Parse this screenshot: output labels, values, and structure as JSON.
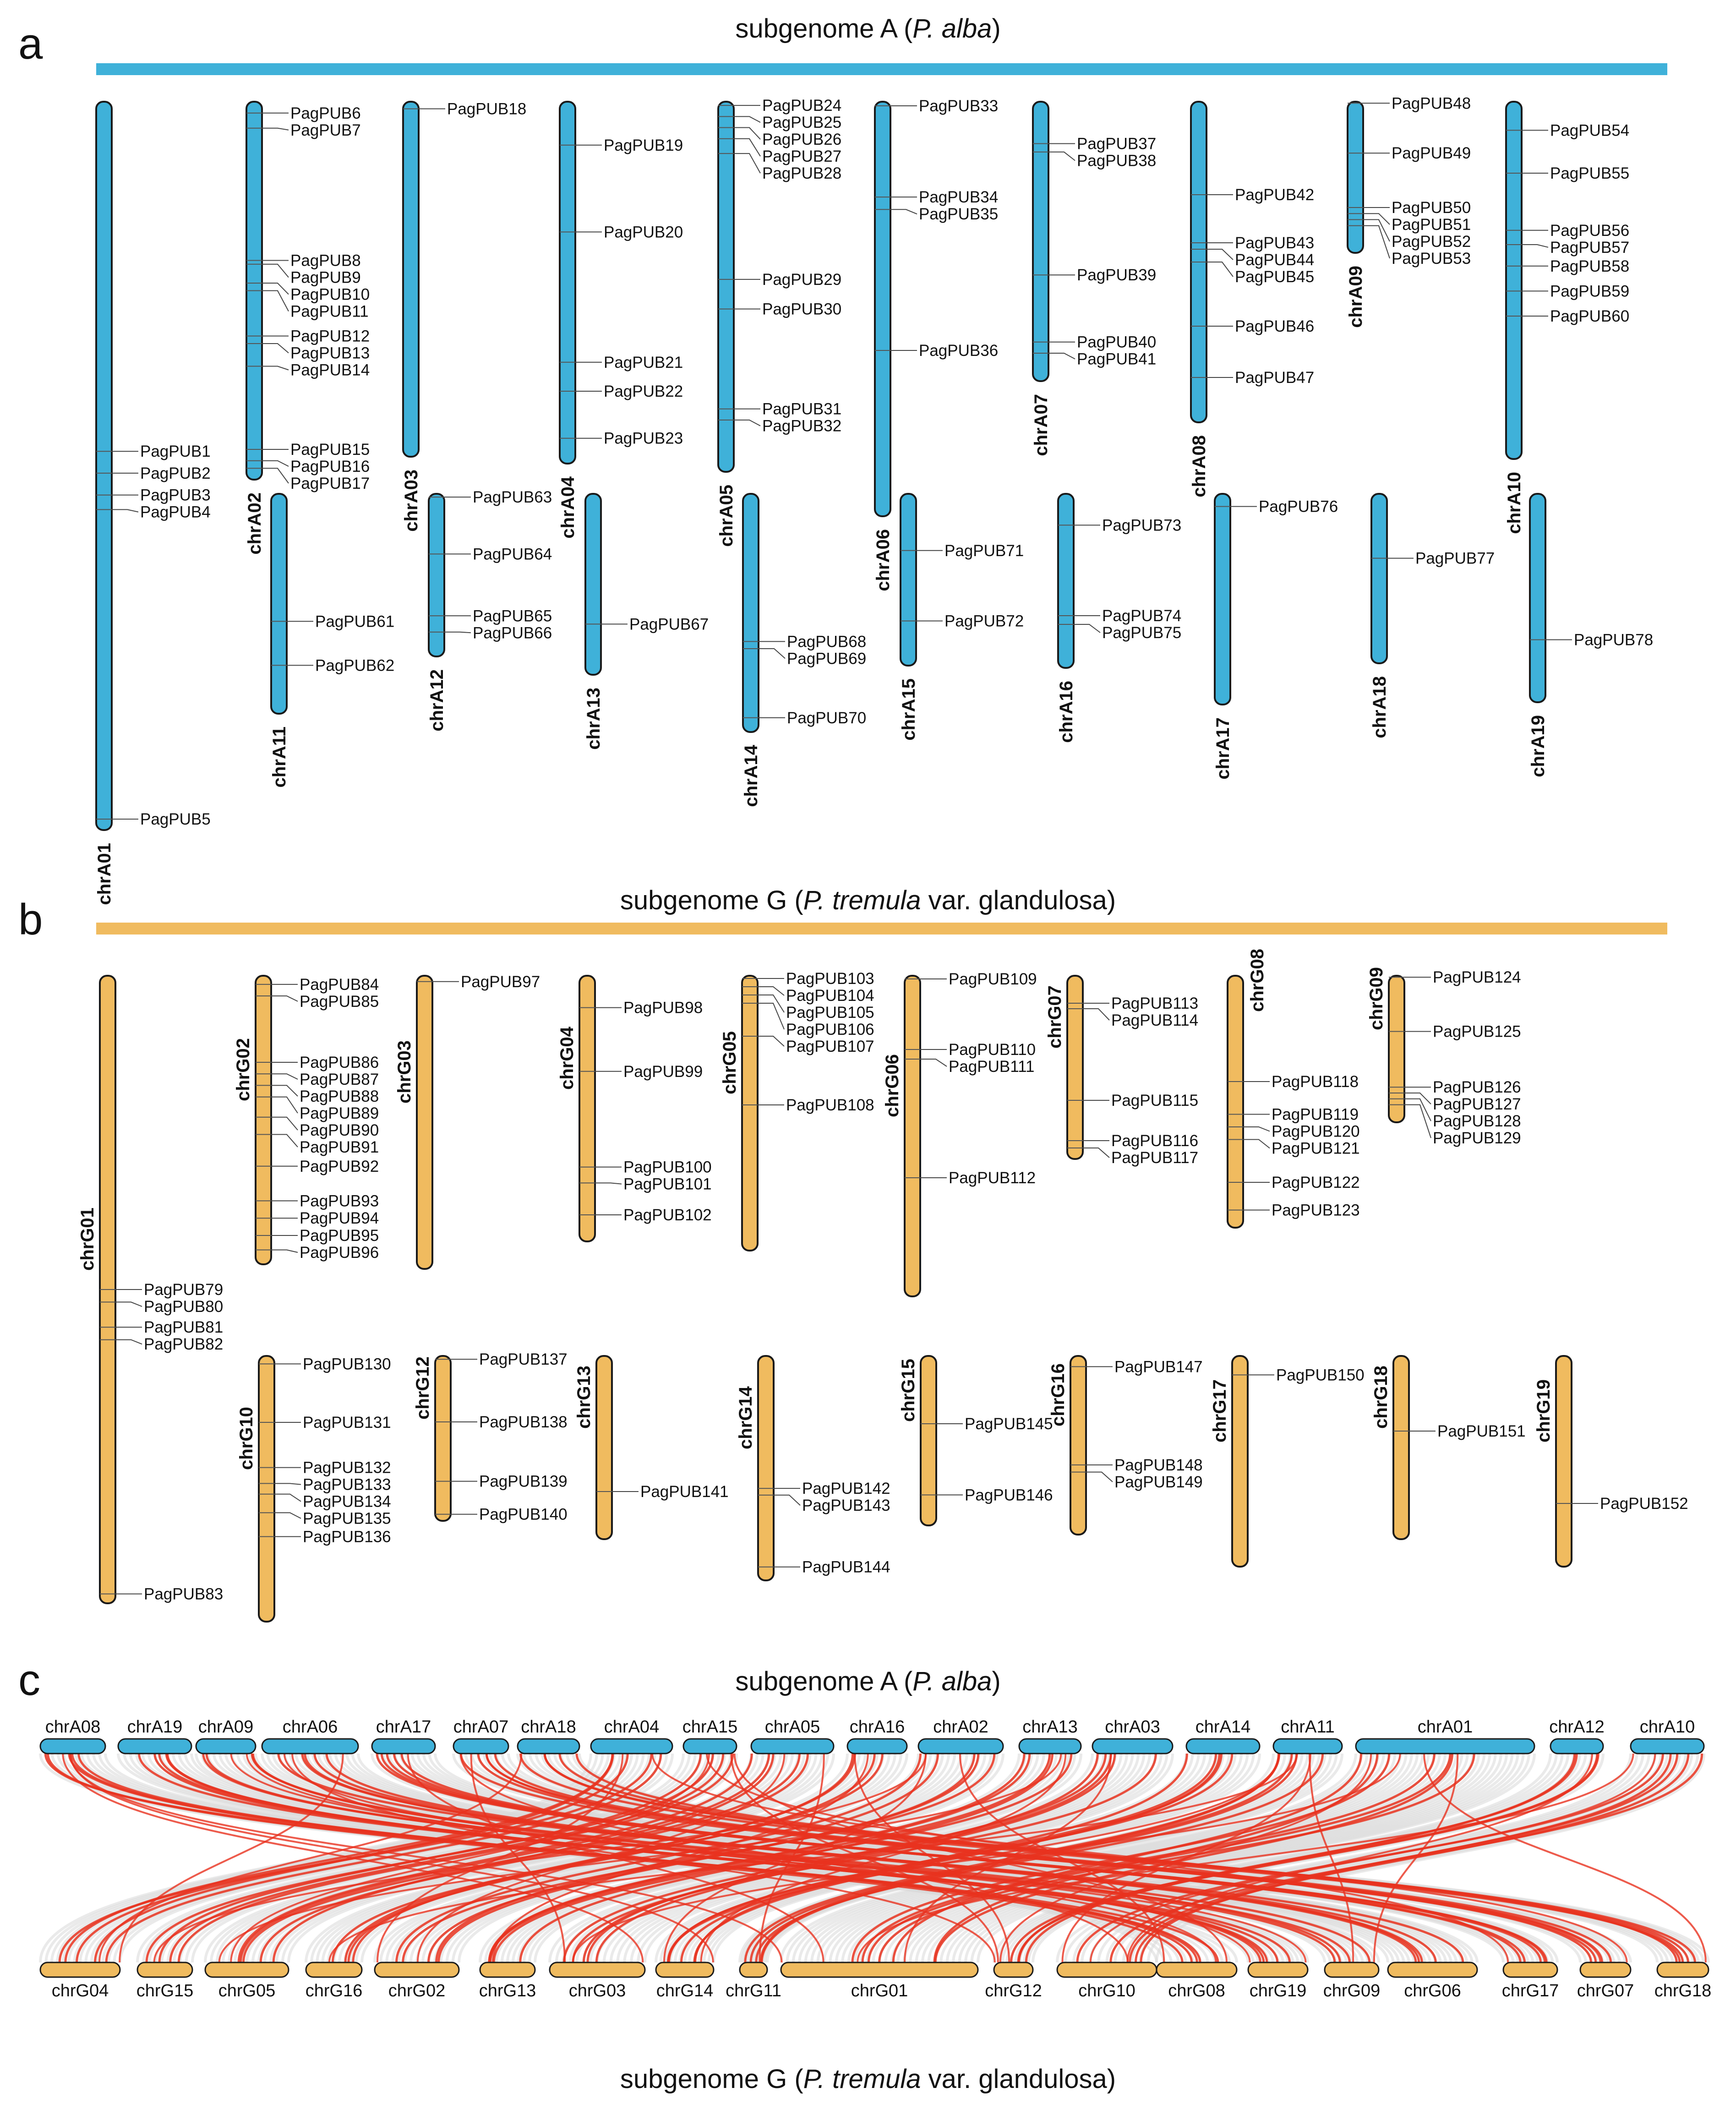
{
  "panel_a": {
    "label": "a",
    "title_pre": "subgenome A (",
    "title_em": "P. alba",
    "title_post": ")",
    "bar_color": "#3fb1d9",
    "chromosomes": [
      {
        "name": "chrA01",
        "genes": [
          [
            "PagPUB1",
            0.48
          ],
          [
            "PagPUB2",
            0.51
          ],
          [
            "PagPUB3",
            0.54
          ],
          [
            "PagPUB4",
            0.56
          ],
          [
            "PagPUB5",
            0.985
          ]
        ]
      },
      {
        "name": "chrA02",
        "genes": [
          [
            "PagPUB6",
            0.03
          ],
          [
            "PagPUB7",
            0.07
          ],
          [
            "PagPUB8",
            0.42
          ],
          [
            "PagPUB9",
            0.43
          ],
          [
            "PagPUB10",
            0.48
          ],
          [
            "PagPUB11",
            0.5
          ],
          [
            "PagPUB12",
            0.62
          ],
          [
            "PagPUB13",
            0.64
          ],
          [
            "PagPUB14",
            0.7
          ],
          [
            "PagPUB15",
            0.92
          ],
          [
            "PagPUB16",
            0.95
          ],
          [
            "PagPUB17",
            0.97
          ]
        ]
      },
      {
        "name": "chrA03",
        "genes": [
          [
            "PagPUB18",
            0.02
          ]
        ]
      },
      {
        "name": "chrA04",
        "genes": [
          [
            "PagPUB19",
            0.12
          ],
          [
            "PagPUB20",
            0.36
          ],
          [
            "PagPUB21",
            0.72
          ],
          [
            "PagPUB22",
            0.8
          ],
          [
            "PagPUB23",
            0.93
          ]
        ]
      },
      {
        "name": "chrA05",
        "genes": [
          [
            "PagPUB24",
            0.01
          ],
          [
            "PagPUB25",
            0.04
          ],
          [
            "PagPUB26",
            0.07
          ],
          [
            "PagPUB27",
            0.1
          ],
          [
            "PagPUB28",
            0.14
          ],
          [
            "PagPUB29",
            0.48
          ],
          [
            "PagPUB30",
            0.56
          ],
          [
            "PagPUB31",
            0.83
          ],
          [
            "PagPUB32",
            0.86
          ]
        ]
      },
      {
        "name": "chrA06",
        "genes": [
          [
            "PagPUB33",
            0.01
          ],
          [
            "PagPUB34",
            0.23
          ],
          [
            "PagPUB35",
            0.26
          ],
          [
            "PagPUB36",
            0.6
          ]
        ]
      },
      {
        "name": "chrA07",
        "genes": [
          [
            "PagPUB37",
            0.15
          ],
          [
            "PagPUB38",
            0.18
          ],
          [
            "PagPUB39",
            0.62
          ],
          [
            "PagPUB40",
            0.86
          ],
          [
            "PagPUB41",
            0.9
          ]
        ]
      },
      {
        "name": "chrA08",
        "genes": [
          [
            "PagPUB42",
            0.29
          ],
          [
            "PagPUB43",
            0.44
          ],
          [
            "PagPUB44",
            0.46
          ],
          [
            "PagPUB45",
            0.5
          ],
          [
            "PagPUB46",
            0.7
          ],
          [
            "PagPUB47",
            0.86
          ]
        ]
      },
      {
        "name": "chrA09",
        "genes": [
          [
            "PagPUB48",
            0.01
          ],
          [
            "PagPUB49",
            0.34
          ],
          [
            "PagPUB50",
            0.7
          ],
          [
            "PagPUB51",
            0.74
          ],
          [
            "PagPUB52",
            0.78
          ],
          [
            "PagPUB53",
            0.82
          ]
        ]
      },
      {
        "name": "chrA10",
        "genes": [
          [
            "PagPUB54",
            0.08
          ],
          [
            "PagPUB55",
            0.2
          ],
          [
            "PagPUB56",
            0.36
          ],
          [
            "PagPUB57",
            0.4
          ],
          [
            "PagPUB58",
            0.46
          ],
          [
            "PagPUB59",
            0.53
          ],
          [
            "PagPUB60",
            0.6
          ]
        ]
      },
      {
        "name": "chrA11",
        "genes": [
          [
            "PagPUB61",
            0.58
          ],
          [
            "PagPUB62",
            0.78
          ]
        ]
      },
      {
        "name": "chrA12",
        "genes": [
          [
            "PagPUB63",
            0.02
          ],
          [
            "PagPUB64",
            0.37
          ],
          [
            "PagPUB65",
            0.75
          ],
          [
            "PagPUB66",
            0.85
          ]
        ]
      },
      {
        "name": "chrA13",
        "genes": [
          [
            "PagPUB67",
            0.72
          ]
        ]
      },
      {
        "name": "chrA14",
        "genes": [
          [
            "PagPUB68",
            0.62
          ],
          [
            "PagPUB69",
            0.65
          ],
          [
            "PagPUB70",
            0.94
          ]
        ]
      },
      {
        "name": "chrA15",
        "genes": [
          [
            "PagPUB71",
            0.33
          ],
          [
            "PagPUB72",
            0.74
          ]
        ]
      },
      {
        "name": "chrA16",
        "genes": [
          [
            "PagPUB73",
            0.18
          ],
          [
            "PagPUB74",
            0.7
          ],
          [
            "PagPUB75",
            0.75
          ]
        ]
      },
      {
        "name": "chrA17",
        "genes": [
          [
            "PagPUB76",
            0.06
          ]
        ]
      },
      {
        "name": "chrA18",
        "genes": [
          [
            "PagPUB77",
            0.38
          ]
        ]
      },
      {
        "name": "chrA19",
        "genes": [
          [
            "PagPUB78",
            0.7
          ]
        ]
      }
    ]
  },
  "panel_b": {
    "label": "b",
    "title_pre": "subgenome G (",
    "title_em": "P. tremula",
    "title_post": " var. glandulosa)",
    "bar_color": "#f0bb5f",
    "chromosomes": [
      {
        "name": "chrG01",
        "genes": [
          [
            "PagPUB79",
            0.5
          ],
          [
            "PagPUB80",
            0.52
          ],
          [
            "PagPUB81",
            0.56
          ],
          [
            "PagPUB82",
            0.58
          ],
          [
            "PagPUB83",
            0.985
          ]
        ]
      },
      {
        "name": "chrG02",
        "genes": [
          [
            "PagPUB84",
            0.03
          ],
          [
            "PagPUB85",
            0.07
          ],
          [
            "PagPUB86",
            0.3
          ],
          [
            "PagPUB87",
            0.34
          ],
          [
            "PagPUB88",
            0.38
          ],
          [
            "PagPUB89",
            0.42
          ],
          [
            "PagPUB90",
            0.49
          ],
          [
            "PagPUB91",
            0.55
          ],
          [
            "PagPUB92",
            0.66
          ],
          [
            "PagPUB93",
            0.78
          ],
          [
            "PagPUB94",
            0.84
          ],
          [
            "PagPUB95",
            0.9
          ],
          [
            "PagPUB96",
            0.95
          ]
        ]
      },
      {
        "name": "chrG03",
        "genes": [
          [
            "PagPUB97",
            0.02
          ]
        ]
      },
      {
        "name": "chrG04",
        "genes": [
          [
            "PagPUB98",
            0.12
          ],
          [
            "PagPUB99",
            0.36
          ],
          [
            "PagPUB100",
            0.72
          ],
          [
            "PagPUB101",
            0.78
          ],
          [
            "PagPUB102",
            0.9
          ]
        ]
      },
      {
        "name": "chrG05",
        "genes": [
          [
            "PagPUB103",
            0.01
          ],
          [
            "PagPUB104",
            0.04
          ],
          [
            "PagPUB105",
            0.07
          ],
          [
            "PagPUB106",
            0.1
          ],
          [
            "PagPUB107",
            0.22
          ],
          [
            "PagPUB108",
            0.47
          ]
        ]
      },
      {
        "name": "chrG06",
        "genes": [
          [
            "PagPUB109",
            0.01
          ],
          [
            "PagPUB110",
            0.23
          ],
          [
            "PagPUB111",
            0.26
          ],
          [
            "PagPUB112",
            0.63
          ]
        ]
      },
      {
        "name": "chrG07",
        "genes": [
          [
            "PagPUB113",
            0.15
          ],
          [
            "PagPUB114",
            0.18
          ],
          [
            "PagPUB115",
            0.68
          ],
          [
            "PagPUB116",
            0.9
          ],
          [
            "PagPUB117",
            0.94
          ]
        ]
      },
      {
        "name": "chrG08",
        "genes": [
          [
            "PagPUB118",
            0.42
          ],
          [
            "PagPUB119",
            0.55
          ],
          [
            "PagPUB120",
            0.6
          ],
          [
            "PagPUB121",
            0.65
          ],
          [
            "PagPUB122",
            0.82
          ],
          [
            "PagPUB123",
            0.93
          ]
        ]
      },
      {
        "name": "chrG09",
        "genes": [
          [
            "PagPUB124",
            0.01
          ],
          [
            "PagPUB125",
            0.38
          ],
          [
            "PagPUB126",
            0.76
          ],
          [
            "PagPUB127",
            0.8
          ],
          [
            "PagPUB128",
            0.84
          ],
          [
            "PagPUB129",
            0.88
          ]
        ]
      },
      {
        "name": "chrG10",
        "genes": [
          [
            "PagPUB130",
            0.03
          ],
          [
            "PagPUB131",
            0.25
          ],
          [
            "PagPUB132",
            0.42
          ],
          [
            "PagPUB133",
            0.48
          ],
          [
            "PagPUB134",
            0.52
          ],
          [
            "PagPUB135",
            0.59
          ],
          [
            "PagPUB136",
            0.68
          ]
        ]
      },
      {
        "name": "chrG12",
        "genes": [
          [
            "PagPUB137",
            0.02
          ],
          [
            "PagPUB138",
            0.4
          ],
          [
            "PagPUB139",
            0.76
          ],
          [
            "PagPUB140",
            0.96
          ]
        ]
      },
      {
        "name": "chrG13",
        "genes": [
          [
            "PagPUB141",
            0.74
          ]
        ]
      },
      {
        "name": "chrG14",
        "genes": [
          [
            "PagPUB142",
            0.59
          ],
          [
            "PagPUB143",
            0.62
          ],
          [
            "PagPUB144",
            0.94
          ]
        ]
      },
      {
        "name": "chrG15",
        "genes": [
          [
            "PagPUB145",
            0.4
          ],
          [
            "PagPUB146",
            0.82
          ]
        ]
      },
      {
        "name": "chrG16",
        "genes": [
          [
            "PagPUB147",
            0.06
          ],
          [
            "PagPUB148",
            0.61
          ],
          [
            "PagPUB149",
            0.65
          ]
        ]
      },
      {
        "name": "chrG17",
        "genes": [
          [
            "PagPUB150",
            0.09
          ]
        ]
      },
      {
        "name": "chrG18",
        "genes": [
          [
            "PagPUB151",
            0.41
          ]
        ]
      },
      {
        "name": "chrG19",
        "genes": [
          [
            "PagPUB152",
            0.7
          ]
        ]
      }
    ]
  },
  "panel_c": {
    "label": "c",
    "top_title_pre": "subgenome A (",
    "top_title_em": "P. alba",
    "top_title_post": ")",
    "bottom_title_pre": "subgenome G (",
    "bottom_title_em": "P. tremula",
    "bottom_title_post": " var. glandulosa)",
    "top_color": "#3fb1d9",
    "bottom_color": "#f0bb5f",
    "link_color": "#e8321f",
    "background_link_color": "#d9d9d9",
    "top_chromosomes": [
      "chrA08",
      "chrA19",
      "chrA09",
      "chrA06",
      "chrA17",
      "chrA07",
      "chrA18",
      "chrA04",
      "chrA15",
      "chrA05",
      "chrA16",
      "chrA02",
      "chrA13",
      "chrA03",
      "chrA14",
      "chrA11",
      "chrA01",
      "chrA12",
      "chrA10"
    ],
    "bottom_chromosomes": [
      "chrG04",
      "chrG15",
      "chrG05",
      "chrG16",
      "chrG02",
      "chrG13",
      "chrG03",
      "chrG14",
      "chrG11",
      "chrG01",
      "chrG12",
      "chrG10",
      "chrG08",
      "chrG19",
      "chrG09",
      "chrG06",
      "chrG17",
      "chrG07",
      "chrG18"
    ]
  }
}
